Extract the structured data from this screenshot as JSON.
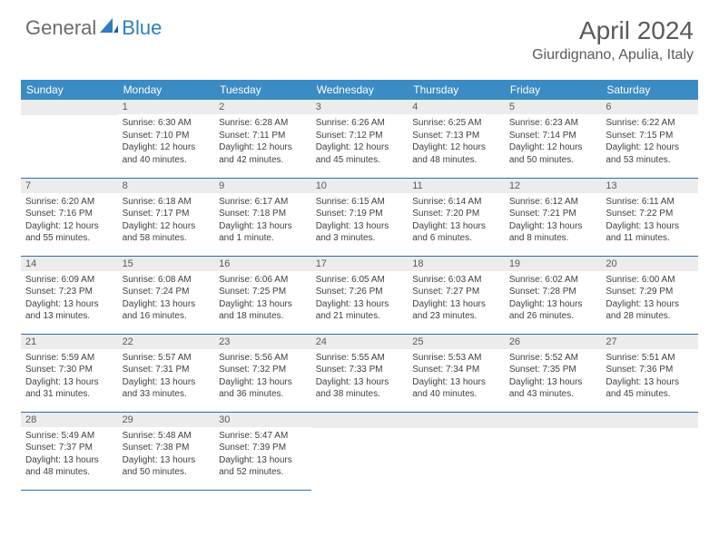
{
  "brand": {
    "part1": "General",
    "part2": "Blue"
  },
  "title": "April 2024",
  "location": "Giurdignano, Apulia, Italy",
  "colors": {
    "header_bg": "#3b8bc4",
    "header_text": "#ffffff",
    "daynum_bg": "#ececec",
    "cell_border": "#2d6fa8",
    "body_text": "#404040",
    "logo_gray": "#6b6b6b",
    "logo_blue": "#2d7fc0"
  },
  "typography": {
    "title_fontsize": 28,
    "location_fontsize": 16,
    "header_fontsize": 12,
    "daynum_fontsize": 11,
    "cell_fontsize": 10
  },
  "dayHeaders": [
    "Sunday",
    "Monday",
    "Tuesday",
    "Wednesday",
    "Thursday",
    "Friday",
    "Saturday"
  ],
  "weeks": [
    [
      {
        "n": "",
        "lines": []
      },
      {
        "n": "1",
        "lines": [
          "Sunrise: 6:30 AM",
          "Sunset: 7:10 PM",
          "Daylight: 12 hours",
          "and 40 minutes."
        ]
      },
      {
        "n": "2",
        "lines": [
          "Sunrise: 6:28 AM",
          "Sunset: 7:11 PM",
          "Daylight: 12 hours",
          "and 42 minutes."
        ]
      },
      {
        "n": "3",
        "lines": [
          "Sunrise: 6:26 AM",
          "Sunset: 7:12 PM",
          "Daylight: 12 hours",
          "and 45 minutes."
        ]
      },
      {
        "n": "4",
        "lines": [
          "Sunrise: 6:25 AM",
          "Sunset: 7:13 PM",
          "Daylight: 12 hours",
          "and 48 minutes."
        ]
      },
      {
        "n": "5",
        "lines": [
          "Sunrise: 6:23 AM",
          "Sunset: 7:14 PM",
          "Daylight: 12 hours",
          "and 50 minutes."
        ]
      },
      {
        "n": "6",
        "lines": [
          "Sunrise: 6:22 AM",
          "Sunset: 7:15 PM",
          "Daylight: 12 hours",
          "and 53 minutes."
        ]
      }
    ],
    [
      {
        "n": "7",
        "lines": [
          "Sunrise: 6:20 AM",
          "Sunset: 7:16 PM",
          "Daylight: 12 hours",
          "and 55 minutes."
        ]
      },
      {
        "n": "8",
        "lines": [
          "Sunrise: 6:18 AM",
          "Sunset: 7:17 PM",
          "Daylight: 12 hours",
          "and 58 minutes."
        ]
      },
      {
        "n": "9",
        "lines": [
          "Sunrise: 6:17 AM",
          "Sunset: 7:18 PM",
          "Daylight: 13 hours",
          "and 1 minute."
        ]
      },
      {
        "n": "10",
        "lines": [
          "Sunrise: 6:15 AM",
          "Sunset: 7:19 PM",
          "Daylight: 13 hours",
          "and 3 minutes."
        ]
      },
      {
        "n": "11",
        "lines": [
          "Sunrise: 6:14 AM",
          "Sunset: 7:20 PM",
          "Daylight: 13 hours",
          "and 6 minutes."
        ]
      },
      {
        "n": "12",
        "lines": [
          "Sunrise: 6:12 AM",
          "Sunset: 7:21 PM",
          "Daylight: 13 hours",
          "and 8 minutes."
        ]
      },
      {
        "n": "13",
        "lines": [
          "Sunrise: 6:11 AM",
          "Sunset: 7:22 PM",
          "Daylight: 13 hours",
          "and 11 minutes."
        ]
      }
    ],
    [
      {
        "n": "14",
        "lines": [
          "Sunrise: 6:09 AM",
          "Sunset: 7:23 PM",
          "Daylight: 13 hours",
          "and 13 minutes."
        ]
      },
      {
        "n": "15",
        "lines": [
          "Sunrise: 6:08 AM",
          "Sunset: 7:24 PM",
          "Daylight: 13 hours",
          "and 16 minutes."
        ]
      },
      {
        "n": "16",
        "lines": [
          "Sunrise: 6:06 AM",
          "Sunset: 7:25 PM",
          "Daylight: 13 hours",
          "and 18 minutes."
        ]
      },
      {
        "n": "17",
        "lines": [
          "Sunrise: 6:05 AM",
          "Sunset: 7:26 PM",
          "Daylight: 13 hours",
          "and 21 minutes."
        ]
      },
      {
        "n": "18",
        "lines": [
          "Sunrise: 6:03 AM",
          "Sunset: 7:27 PM",
          "Daylight: 13 hours",
          "and 23 minutes."
        ]
      },
      {
        "n": "19",
        "lines": [
          "Sunrise: 6:02 AM",
          "Sunset: 7:28 PM",
          "Daylight: 13 hours",
          "and 26 minutes."
        ]
      },
      {
        "n": "20",
        "lines": [
          "Sunrise: 6:00 AM",
          "Sunset: 7:29 PM",
          "Daylight: 13 hours",
          "and 28 minutes."
        ]
      }
    ],
    [
      {
        "n": "21",
        "lines": [
          "Sunrise: 5:59 AM",
          "Sunset: 7:30 PM",
          "Daylight: 13 hours",
          "and 31 minutes."
        ]
      },
      {
        "n": "22",
        "lines": [
          "Sunrise: 5:57 AM",
          "Sunset: 7:31 PM",
          "Daylight: 13 hours",
          "and 33 minutes."
        ]
      },
      {
        "n": "23",
        "lines": [
          "Sunrise: 5:56 AM",
          "Sunset: 7:32 PM",
          "Daylight: 13 hours",
          "and 36 minutes."
        ]
      },
      {
        "n": "24",
        "lines": [
          "Sunrise: 5:55 AM",
          "Sunset: 7:33 PM",
          "Daylight: 13 hours",
          "and 38 minutes."
        ]
      },
      {
        "n": "25",
        "lines": [
          "Sunrise: 5:53 AM",
          "Sunset: 7:34 PM",
          "Daylight: 13 hours",
          "and 40 minutes."
        ]
      },
      {
        "n": "26",
        "lines": [
          "Sunrise: 5:52 AM",
          "Sunset: 7:35 PM",
          "Daylight: 13 hours",
          "and 43 minutes."
        ]
      },
      {
        "n": "27",
        "lines": [
          "Sunrise: 5:51 AM",
          "Sunset: 7:36 PM",
          "Daylight: 13 hours",
          "and 45 minutes."
        ]
      }
    ],
    [
      {
        "n": "28",
        "lines": [
          "Sunrise: 5:49 AM",
          "Sunset: 7:37 PM",
          "Daylight: 13 hours",
          "and 48 minutes."
        ]
      },
      {
        "n": "29",
        "lines": [
          "Sunrise: 5:48 AM",
          "Sunset: 7:38 PM",
          "Daylight: 13 hours",
          "and 50 minutes."
        ]
      },
      {
        "n": "30",
        "lines": [
          "Sunrise: 5:47 AM",
          "Sunset: 7:39 PM",
          "Daylight: 13 hours",
          "and 52 minutes."
        ]
      },
      {
        "n": "",
        "lines": []
      },
      {
        "n": "",
        "lines": []
      },
      {
        "n": "",
        "lines": []
      },
      {
        "n": "",
        "lines": []
      }
    ]
  ]
}
